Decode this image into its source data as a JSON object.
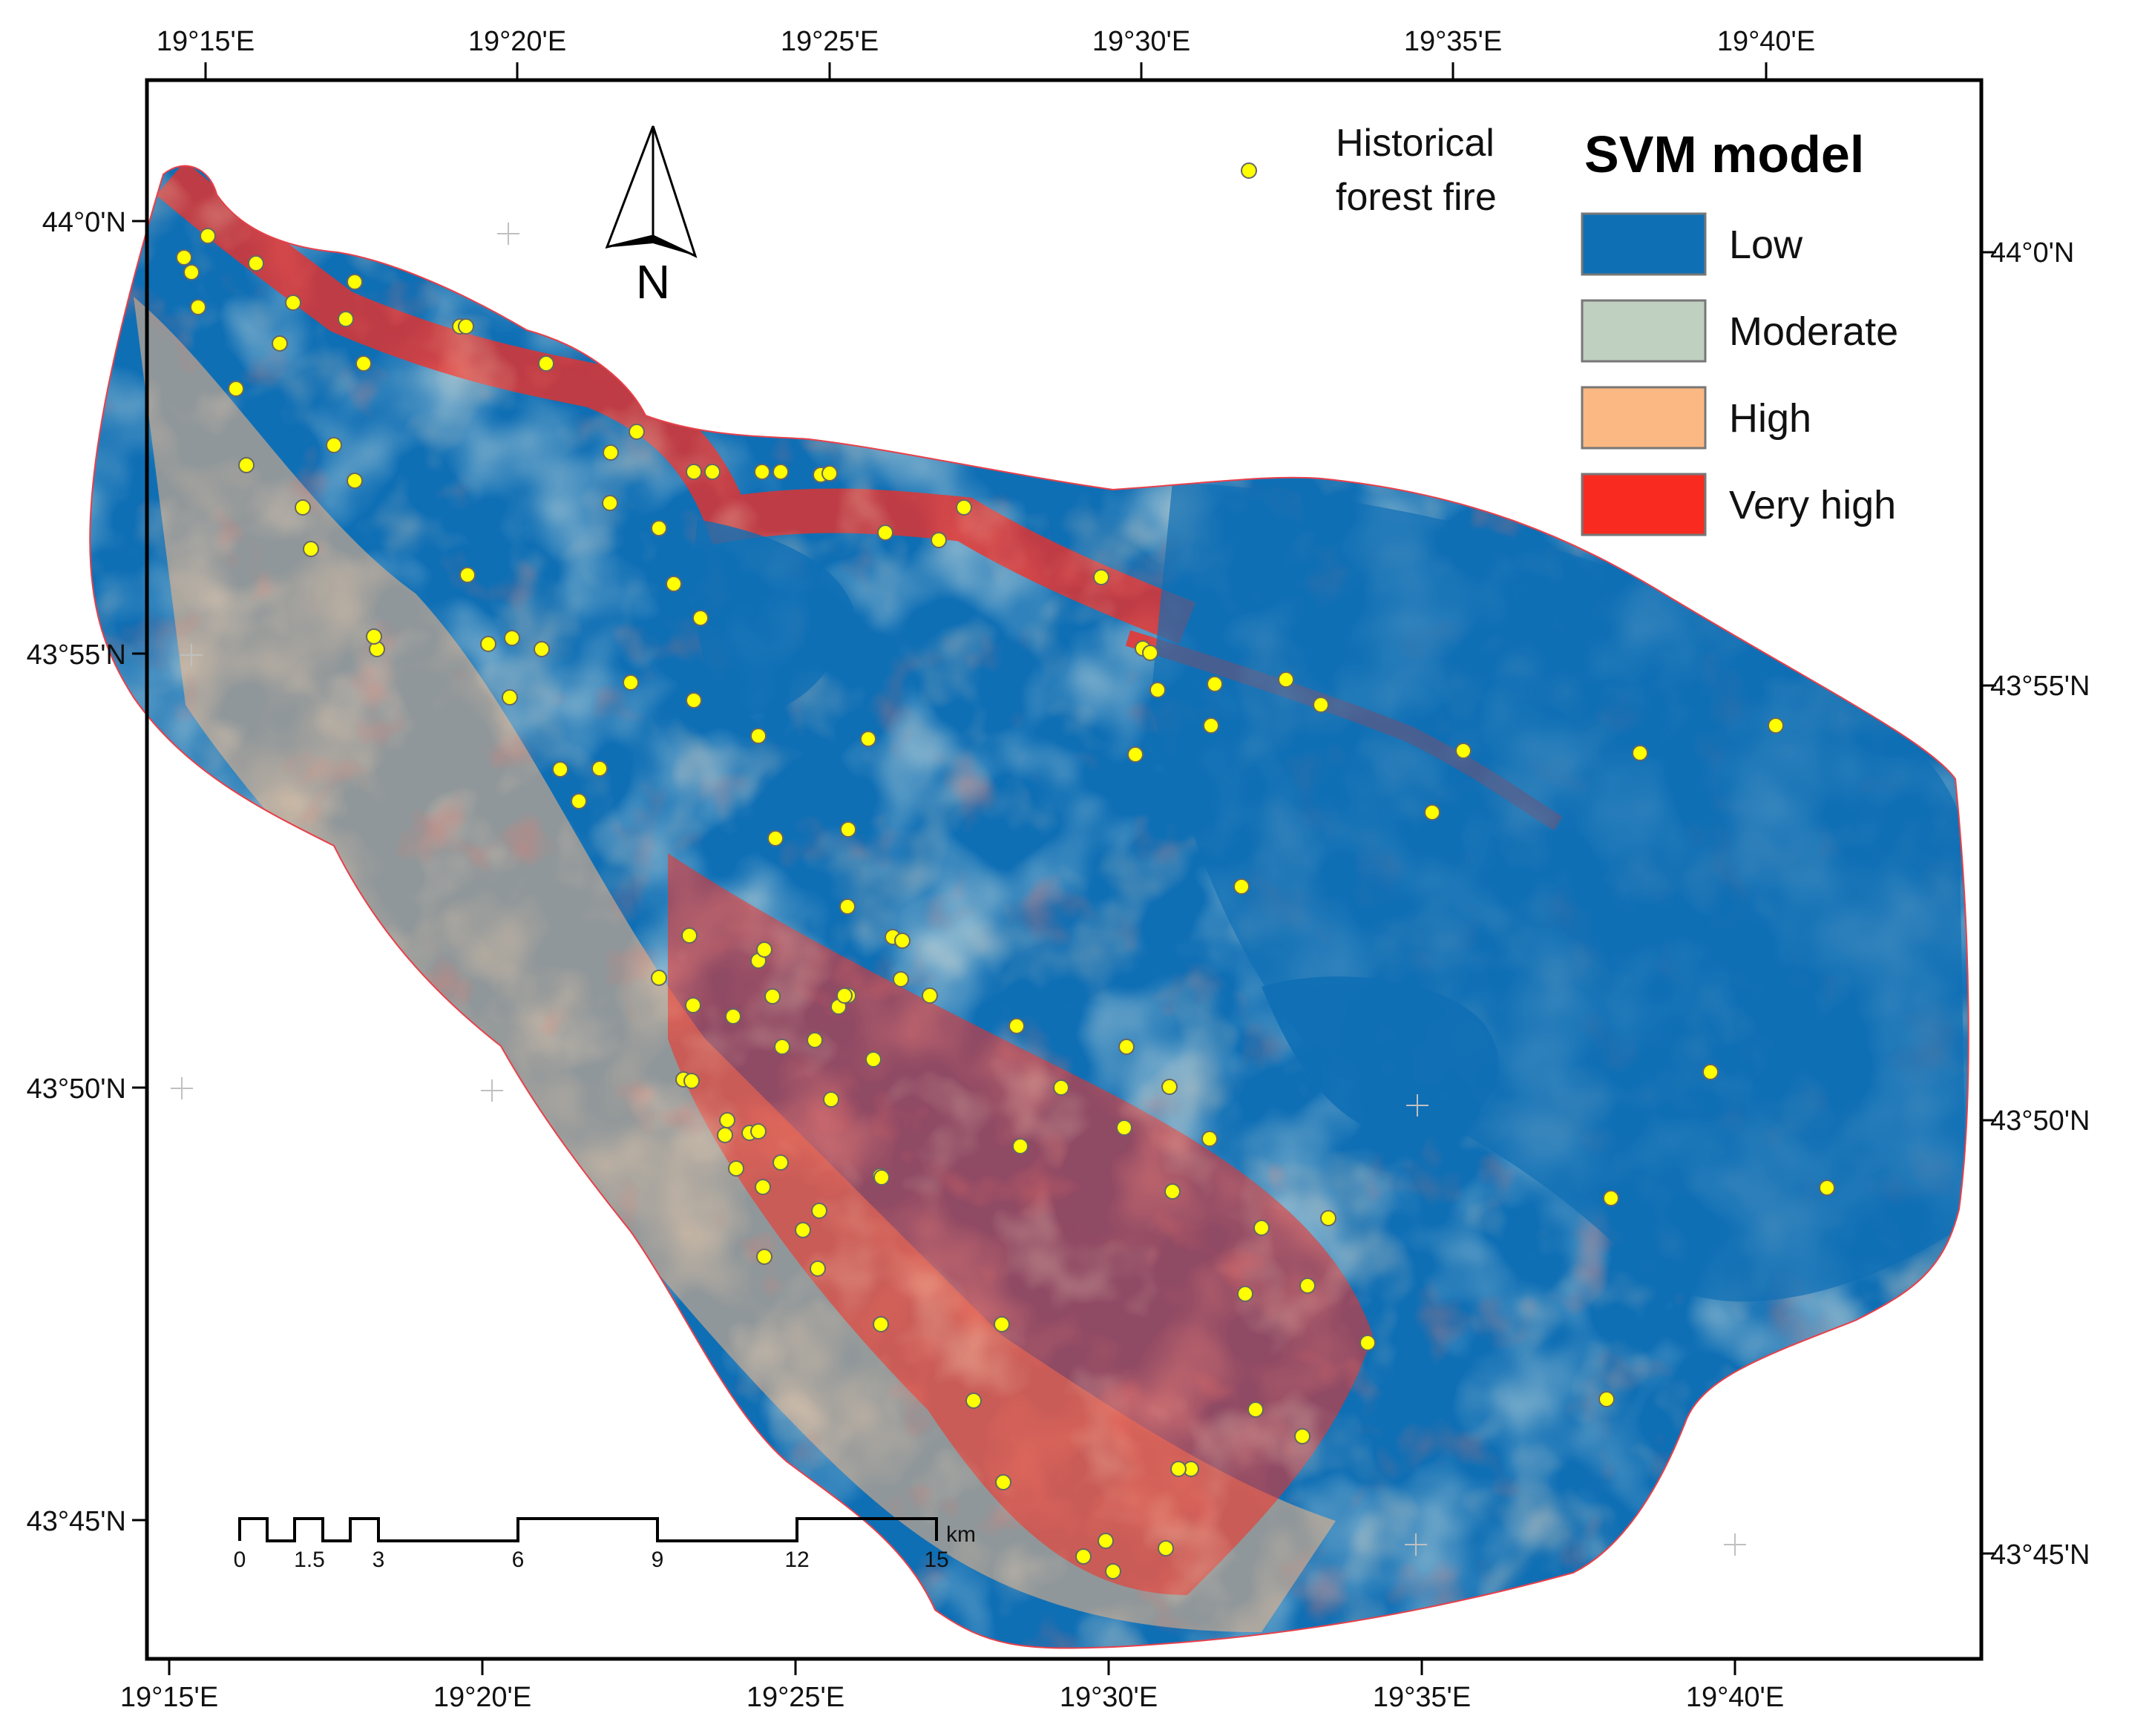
{
  "map": {
    "axes": {
      "top_lon_labels": [
        "19°15'E",
        "19°20'E",
        "19°25'E",
        "19°30'E",
        "19°35'E",
        "19°40'E"
      ],
      "bottom_lon_labels": [
        "19°15'E",
        "19°20'E",
        "19°25'E",
        "19°30'E",
        "19°35'E",
        "19°40'E"
      ],
      "left_lat_labels": [
        "44°0'N",
        "43°55'N",
        "43°50'N",
        "43°45'N"
      ],
      "right_lat_labels": [
        "44°0'N",
        "43°55'N",
        "43°50'N",
        "43°45'N"
      ]
    },
    "north_arrow": {
      "label": "N"
    },
    "fire_legend": {
      "line1": "Historical",
      "line2": "forest fire",
      "marker_color": "#ffff00"
    },
    "legend": {
      "title": "SVM model",
      "classes": [
        {
          "label": "Low",
          "color": "#0f6fb5"
        },
        {
          "label": "Moderate",
          "color": "#bfcfc0"
        },
        {
          "label": "High",
          "color": "#fcb883"
        },
        {
          "label": "Very high",
          "color": "#f92b20"
        }
      ]
    },
    "scale_bar": {
      "unit": "km",
      "tick_labels": [
        "0",
        "1.5",
        "3",
        "6",
        "9",
        "12",
        "15"
      ]
    }
  }
}
